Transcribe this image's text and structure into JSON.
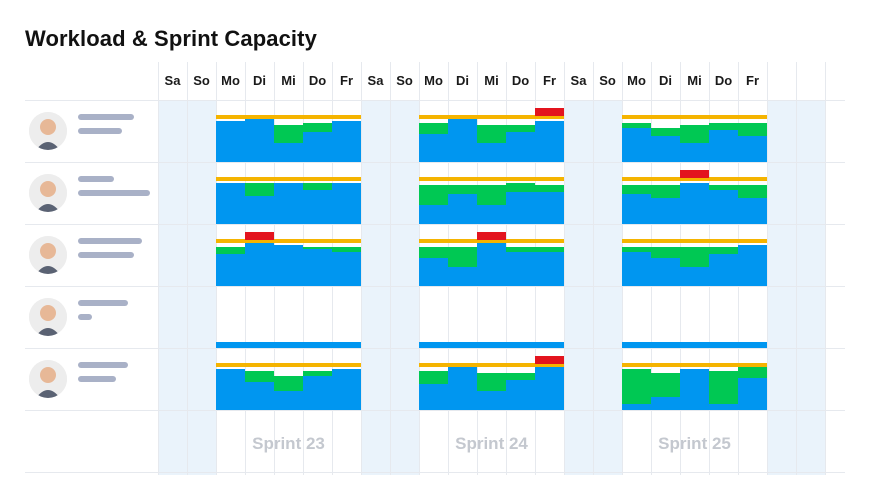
{
  "title": "Workload & Sprint Capacity",
  "days": [
    "Sa",
    "So",
    "Mo",
    "Di",
    "Mi",
    "Do",
    "Fr",
    "Sa",
    "So",
    "Mo",
    "Di",
    "Mi",
    "Do",
    "Fr",
    "Sa",
    "So",
    "Mo",
    "Di",
    "Mi",
    "Do",
    "Fr"
  ],
  "sprints": [
    "Sprint 23",
    "Sprint 24",
    "Sprint 25"
  ],
  "colors": {
    "capacity": "#f5b400",
    "available": "#00c853",
    "assigned": "#0096f0",
    "overload": "#e3141e",
    "weekend": "#eaf3fb",
    "avatar_skin": "#e7b897"
  },
  "people": [
    {
      "avatar": "person-avatar-1",
      "sprints": [
        [
          [
            0,
            0.95,
            0
          ],
          [
            0,
            1,
            0
          ],
          [
            0.4,
            0.45,
            0
          ],
          [
            0.2,
            0.7,
            0
          ],
          [
            0,
            0.95,
            0
          ]
        ],
        [
          [
            0.25,
            0.65,
            0
          ],
          [
            0,
            1,
            0
          ],
          [
            0.4,
            0.45,
            0
          ],
          [
            0.15,
            0.7,
            0
          ],
          [
            0,
            0.95,
            0.15
          ]
        ],
        [
          [
            0.1,
            0.8,
            0
          ],
          [
            0.2,
            0.6,
            0
          ],
          [
            0.4,
            0.45,
            0
          ],
          [
            0.15,
            0.75,
            0
          ],
          [
            0.3,
            0.6,
            0
          ]
        ]
      ]
    },
    {
      "avatar": "person-avatar-2",
      "sprints": [
        [
          [
            0,
            0.95,
            0
          ],
          [
            0.3,
            0.65,
            0
          ],
          [
            0,
            0.95,
            0
          ],
          [
            0.15,
            0.8,
            0
          ],
          [
            0,
            0.95,
            0
          ]
        ],
        [
          [
            0.45,
            0.45,
            0
          ],
          [
            0.2,
            0.7,
            0
          ],
          [
            0.45,
            0.45,
            0
          ],
          [
            0.2,
            0.75,
            0
          ],
          [
            0.15,
            0.75,
            0
          ]
        ],
        [
          [
            0.2,
            0.7,
            0
          ],
          [
            0.3,
            0.6,
            0
          ],
          [
            0,
            0.95,
            0.15
          ],
          [
            0.1,
            0.8,
            0
          ],
          [
            0.3,
            0.6,
            0
          ]
        ]
      ]
    },
    {
      "avatar": "person-avatar-3",
      "sprints": [
        [
          [
            0.15,
            0.75,
            0
          ],
          [
            0,
            1,
            0.15
          ],
          [
            0,
            0.95,
            0
          ],
          [
            0.05,
            0.85,
            0
          ],
          [
            0.1,
            0.8,
            0
          ]
        ],
        [
          [
            0.25,
            0.65,
            0
          ],
          [
            0.45,
            0.45,
            0
          ],
          [
            0,
            1,
            0.15
          ],
          [
            0.1,
            0.8,
            0
          ],
          [
            0.1,
            0.8,
            0
          ]
        ],
        [
          [
            0.1,
            0.8,
            0
          ],
          [
            0.25,
            0.65,
            0
          ],
          [
            0.45,
            0.45,
            0
          ],
          [
            0.15,
            0.75,
            0
          ],
          [
            0,
            0.95,
            0
          ]
        ]
      ]
    },
    {
      "avatar": "person-avatar-4",
      "sprints": [
        [
          [
            0,
            0,
            0
          ],
          [
            0,
            0,
            0
          ],
          [
            0,
            0,
            0
          ],
          [
            0,
            0,
            0
          ],
          [
            0,
            0,
            0
          ]
        ],
        [
          [
            0,
            0,
            0
          ],
          [
            0,
            0,
            0
          ],
          [
            0,
            0,
            0
          ],
          [
            0,
            0,
            0
          ],
          [
            0,
            0,
            0
          ]
        ],
        [
          [
            0,
            0,
            0
          ],
          [
            0,
            0,
            0
          ],
          [
            0,
            0,
            0
          ],
          [
            0,
            0,
            0
          ],
          [
            0,
            0,
            0
          ]
        ]
      ]
    },
    {
      "avatar": "person-avatar-5",
      "sprints": [
        [
          [
            0,
            0.95,
            0
          ],
          [
            0.25,
            0.65,
            0
          ],
          [
            0.35,
            0.45,
            0
          ],
          [
            0.1,
            0.8,
            0
          ],
          [
            0,
            0.95,
            0
          ]
        ],
        [
          [
            0.3,
            0.6,
            0
          ],
          [
            0,
            1,
            0
          ],
          [
            0.4,
            0.45,
            0
          ],
          [
            0.15,
            0.7,
            0
          ],
          [
            0,
            1,
            0.15
          ]
        ],
        [
          [
            0.8,
            0.15,
            0
          ],
          [
            0.55,
            0.3,
            0
          ],
          [
            0,
            0.95,
            0
          ],
          [
            0.75,
            0.15,
            0
          ],
          [
            0.25,
            0.75,
            0
          ]
        ]
      ]
    }
  ]
}
